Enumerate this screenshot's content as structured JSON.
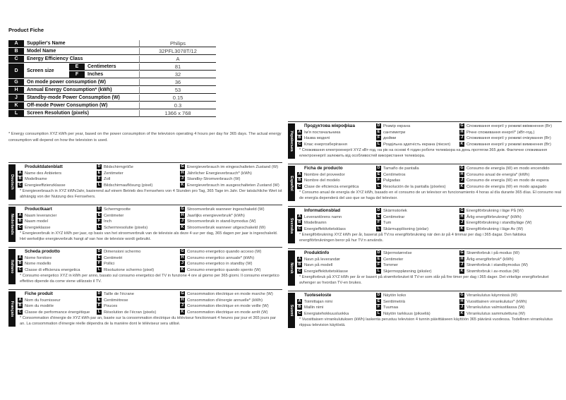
{
  "title": "Product Fiche",
  "table": {
    "rows": [
      {
        "letter": "A",
        "label": "Supplier's Name",
        "value": "Philips"
      },
      {
        "letter": "B",
        "label": "Model Name",
        "value": "32PFL3078T/12"
      },
      {
        "letter": "C",
        "label": "Energy Efficiency Class",
        "value": "A"
      }
    ],
    "screen": {
      "letter": "D",
      "label": "Screen size",
      "sub": [
        {
          "letter": "E",
          "label": "Centimeters",
          "value": "81"
        },
        {
          "letter": "F",
          "label": "Inches",
          "value": "32"
        }
      ]
    },
    "rows2": [
      {
        "letter": "G",
        "label": "On mode power consumption (W)",
        "value": "36"
      },
      {
        "letter": "H",
        "label": "Annual Energy Consumption* (kWh)",
        "value": "53"
      },
      {
        "letter": "J",
        "label": "Standby-mode Power Consumption (W)",
        "value": "0.15"
      },
      {
        "letter": "K",
        "label": "Off-mode Power Consumption (W)",
        "value": "0.3"
      },
      {
        "letter": "L",
        "label": "Screen Resolution (pixels)",
        "value": "1366 x 768"
      }
    ]
  },
  "footnote": "* Energy consumption XYZ kWh per year, based on the power consumption of the television operating 4 hours per day for 365 days. The actual energy consumption will depend on how the television is used.",
  "languages": [
    {
      "lang": "Deutsch",
      "title": "Produktdatenblatt",
      "A": "Name des Anbieters",
      "B": "Modellname",
      "C": "Energieeffizienzklasse",
      "D": "Bildschirmgröße",
      "E": "Zentimeter",
      "F": "Zoll",
      "L": "Bildschirmauflösung (pixel)",
      "G": "Energieverbrauch im eingeschalteten Zustand (W)",
      "H": "Jährlicher Energieverbrauch* (kWh)",
      "J": "Standby-Stromverbrauch (W)",
      "K": "Energieverbrauch im ausgeschalteten Zustand (W)",
      "note": "* Energieverbrauch in XYZ kWh/Jahr, basierend auf einem Betrieb des Fernsehers von 4 Stunden pro Tag, 365 Tage im Jahr. Der tatsächliche Wert ist abhängig von der Nutzung des Fernsehers."
    },
    {
      "lang": "Nederlands",
      "title": "Productkaart",
      "A": "Naam leverancier",
      "B": "Naam model",
      "C": "Energieklasse",
      "D": "Schermgrootte",
      "E": "Centimeter",
      "F": "Inch",
      "L": "Schermresolutie (pixels)",
      "G": "Stroomverbruik wanneer ingeschakeld (W)",
      "H": "Jaarlijks energieverbruik* (kWh)",
      "J": "Stroomverbruik in stand-bymodus (W)",
      "K": "Stroomverbruik wanneer uitgeschakeld (W)",
      "note": "* Energieverbruik in XYZ kWh per jaar, op basis van het stroomverbruik van de televisie als deze 4 uur per dag, 365 dagen per jaar is ingeschakeld. Het werkelijke energieverbruik hangt af van hoe de televisie wordt gebruikt."
    },
    {
      "lang": "Italiano",
      "title": "Scheda prodotto",
      "A": "Nome fornitore",
      "B": "Nome modello",
      "C": "Classe di efficienza energetica",
      "D": "Dimensioni schermo",
      "E": "Centimetri",
      "F": "Pollici",
      "L": "Risoluzione schermo (pixel)",
      "G": "Consumo energetico quando acceso (W)",
      "H": "Consumo energetico annuale* (kWh)",
      "J": "Consumo energetico in standby (W)",
      "K": "Consumo energetico quando spento (W)",
      "note": "* Consumo energetico XYZ in kWh per anno, basato sul consumo energetico del TV in funzione 4 ore al giorno per 365 giorni. Il consumo energetico effettivo dipende da come viene utilizzato il TV."
    },
    {
      "lang": "Français",
      "title": "Fiche produit",
      "A": "Nom du fournisseur",
      "B": "Nom du modèle",
      "C": "Classe de performance énergétique",
      "D": "Taille de l'écrane",
      "E": "Centimètrese",
      "F": "Pouces",
      "L": "Résolution de l'écran (pixels)",
      "G": "Consommation électrique en mode marche (W)",
      "H": "Consommation d'énergie annuelle* (kWh)",
      "J": "Consommation électrique en mode veille (W)",
      "K": "Consommation électrique en mode arrêt (W)",
      "note": "* Consommation d'énergie de XYZ kWh par an, basée sur la consommation électrique du téléviseur fonctionnant 4 heures par jour et 365 jours par an. La consommation d'énergie réelle dépendra de la manière dont le téléviseur sera utilisé."
    },
    {
      "lang": "Українська",
      "title": "Продуктова мікрофіша",
      "A": "Ім'я постачальника",
      "B": "Назва моделі",
      "C": "Клас енергозберігання",
      "D": "Розмір екрана",
      "E": "сантиметри",
      "F": "дюйми",
      "L": "Роздільна здатність екрана (піксел)",
      "G": "Споживання енергії у режимі ввімкнення (Вт)",
      "H": "Річне споживання енергії* (кВт-год.)",
      "J": "Споживання енергії у режимі очікування (Вт)",
      "K": "Споживання енергії у режимі вимкнення (Вт)",
      "note": "* Споживання електроенергії XYZ кВт-год. на рік на основі 4 годин роботи телевізора на день протягом 365 днів. Фактичне споживання електроенергії залежить від особливостей використання телевізора."
    },
    {
      "lang": "Español",
      "title": "Ficha de producto",
      "A": "Nombre del proveedor",
      "B": "Nombre del modelo",
      "C": "Clase de eficiencia energética",
      "D": "Tamaño de pantalla",
      "E": "Centímetros",
      "F": "Pulgadas",
      "L": "Resolución de la pantalla (píxeles)",
      "G": "Consumo de energía (W) en modo encendido",
      "H": "Consumo anual de energía* (kWh)",
      "J": "Consumo de energía (W) en modo de espera",
      "K": "Consumo de energía (W) en modo apagado",
      "note": "* Consumo anual de energía de XYZ kWh, basado en el consumo de un televisor en funcionamiento 4 horas al día durante 365 días. El consumo real de energía dependerá del uso que se haga del televisor."
    },
    {
      "lang": "Svenska",
      "title": "Informationsblad",
      "A": "Leverantörens namn",
      "B": "Modellnamn",
      "C": "Energieffektivitetsklass",
      "D": "Skärmstorlek",
      "E": "Centimetrar",
      "F": "Tum",
      "L": "Skärmupplösning (pixlar)",
      "G": "Energiförbrukning i läge På (W)",
      "H": "Årlig energiförbrukning* (kWh)",
      "J": "Energiförbrukning i standbyläge (W)",
      "K": "Energiförbrukning i läge Av (W)",
      "note": "* Energiförbrukning XYZ kWh per år, baserat på TV:ns energiförbrukning när den är på 4 timmar per dag i 365 dagar. Den faktiska energiförbrukningen beror på hur TV:n används."
    },
    {
      "lang": "Norsk",
      "title": "Produktinfo",
      "A": "Navn på leverandør",
      "B": "Navn på modell",
      "C": "Energieffektivitetsklasse",
      "D": "Skjermstørrelse",
      "E": "Centimeter",
      "F": "Tommer",
      "L": "Skjermoppløsning (piksler)",
      "G": "Strømforbruk i på-modus (W)",
      "H": "Årlig energiforbruk* (kWh)",
      "J": "Strømforbruk i standbymodus (W)",
      "K": "Strømforbruk i av-modus (W)",
      "note": "* Energiforbruk på XYZ kWh per år er basert på strømforbruket til TV-er som står på fire timer per dag i 365 dager. Det virkelige energiforbruket avhenger av hvordan TV-en brukes."
    },
    {
      "lang": "Suomi",
      "title": "Tuoteseloste",
      "A": "Toimittajan nimi",
      "B": "Mallin nimi",
      "C": "Energiatehokkuusluokka",
      "D": "Näytön koko",
      "E": "Senttimetriä",
      "F": "Tuumaa",
      "L": "Näytön tarkkuus (pikseliä)",
      "G": "Virrankulutus käynnissä (W)",
      "H": "Vuosittainen virrankulutus* (kWh)",
      "J": "Virrankulutus valmiustilassa (W)",
      "K": "Virrankulutus sammutettuna (W)",
      "note": "* Vuosittaisen virrankulutuksen (kWh) laskenta perustuu television 4 tunnin päivittäiseen käyttöön 365 päivänä vuodessa. Todellinen virrankulutus riippuu television käytöstä."
    }
  ]
}
